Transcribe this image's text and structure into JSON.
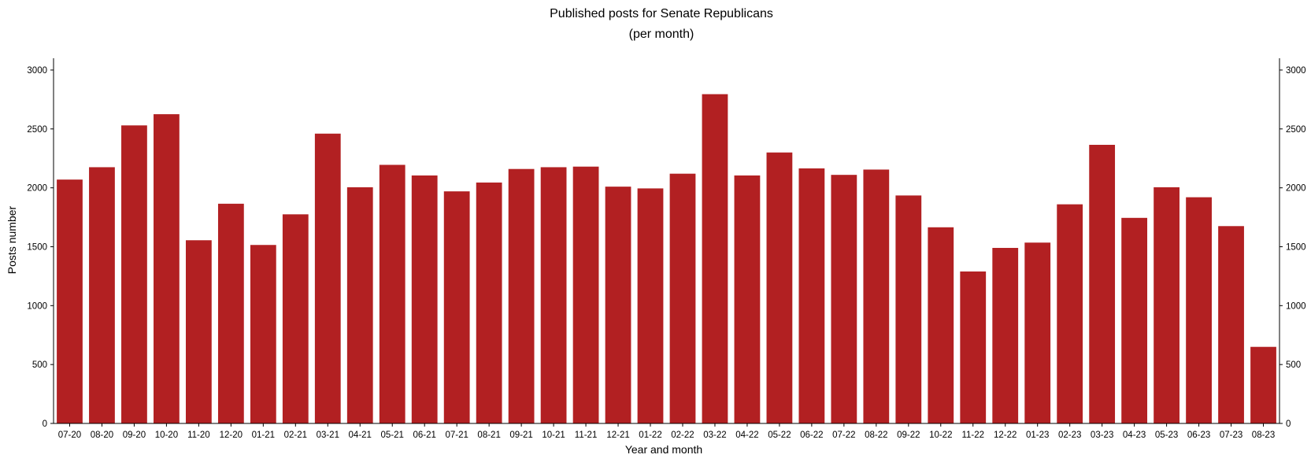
{
  "chart_data": {
    "type": "bar",
    "title": "Published posts for Senate Republicans",
    "subtitle": "(per month)",
    "xlabel": "Year and month",
    "ylabel": "Posts number",
    "ylim": [
      0,
      3100
    ],
    "yticks": [
      0,
      500,
      1000,
      1500,
      2000,
      2500,
      3000
    ],
    "y_axis_sides": "left and right",
    "grid": false,
    "bar_color": "#b22022",
    "categories": [
      "07-20",
      "08-20",
      "09-20",
      "10-20",
      "11-20",
      "12-20",
      "01-21",
      "02-21",
      "03-21",
      "04-21",
      "05-21",
      "06-21",
      "07-21",
      "08-21",
      "09-21",
      "10-21",
      "11-21",
      "12-21",
      "01-22",
      "02-22",
      "03-22",
      "04-22",
      "05-22",
      "06-22",
      "07-22",
      "08-22",
      "09-22",
      "10-22",
      "11-22",
      "12-22",
      "01-23",
      "02-23",
      "03-23",
      "04-23",
      "05-23",
      "06-23",
      "07-23",
      "08-23"
    ],
    "values": [
      2070,
      2175,
      2530,
      2625,
      1555,
      1865,
      1515,
      1775,
      2460,
      2005,
      2195,
      2105,
      1970,
      2045,
      2160,
      2175,
      2180,
      2010,
      1995,
      2120,
      2795,
      2105,
      2300,
      2165,
      2110,
      2155,
      1935,
      1665,
      1290,
      1490,
      1535,
      1860,
      2365,
      1745,
      2005,
      1920,
      1675,
      650
    ]
  }
}
